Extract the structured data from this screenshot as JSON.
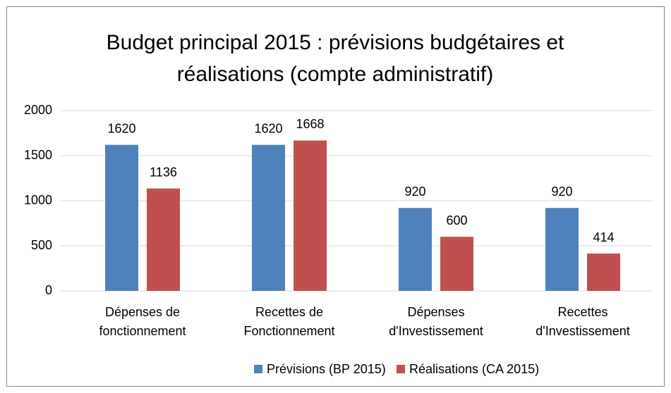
{
  "chart_data": {
    "type": "bar",
    "title": [
      "Budget principal 2015 : prévisions budgétaires et",
      "réalisations (compte administratif)"
    ],
    "categories": [
      [
        "Dépenses de",
        "fonctionnement"
      ],
      [
        "Recettes de",
        "Fonctionnement"
      ],
      [
        "Dépenses",
        "d'Investissement"
      ],
      [
        "Recettes",
        "d'Investissement"
      ]
    ],
    "series": [
      {
        "name": "Prévisions (BP 2015)",
        "color": "#4f81bd",
        "values": [
          1620,
          1620,
          920,
          920
        ]
      },
      {
        "name": "Réalisations (CA 2015)",
        "color": "#c0504d",
        "values": [
          1136,
          1668,
          600,
          414
        ]
      }
    ],
    "ylim": [
      0,
      2000
    ],
    "yticks": [
      0,
      500,
      1000,
      1500,
      2000
    ],
    "grid": true,
    "legend": "bottom"
  }
}
